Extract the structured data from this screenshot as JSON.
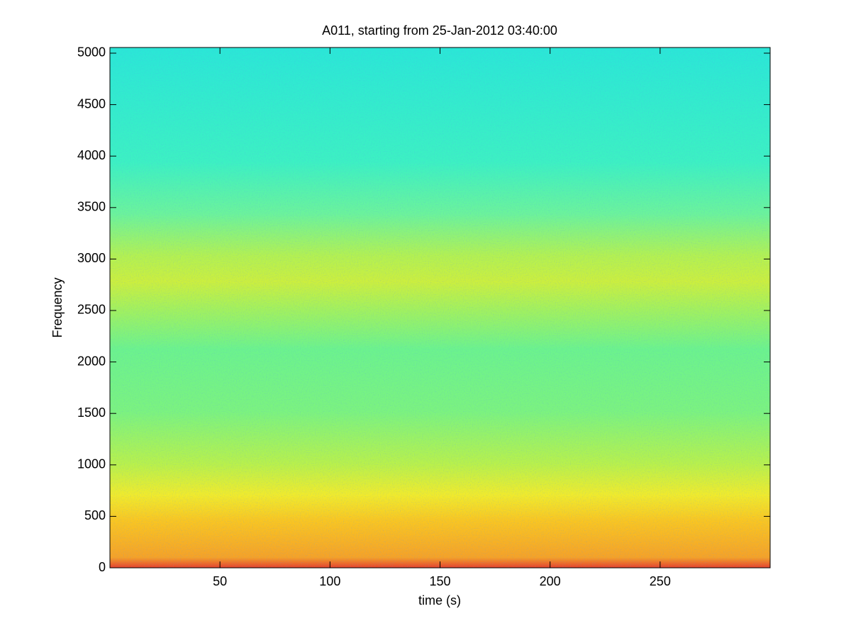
{
  "chart_data": {
    "type": "spectrogram",
    "title": "A011, starting from 25-Jan-2012 03:40:00",
    "x_label": "time (s)",
    "y_label": "Frequency",
    "xlim": [
      0,
      300
    ],
    "ylim": [
      0,
      5055
    ],
    "xticks": [
      50,
      100,
      150,
      200,
      250
    ],
    "yticks": [
      0,
      500,
      1000,
      1500,
      2000,
      2500,
      3000,
      3500,
      4000,
      4500,
      5000
    ],
    "colormap": "jet"
  }
}
